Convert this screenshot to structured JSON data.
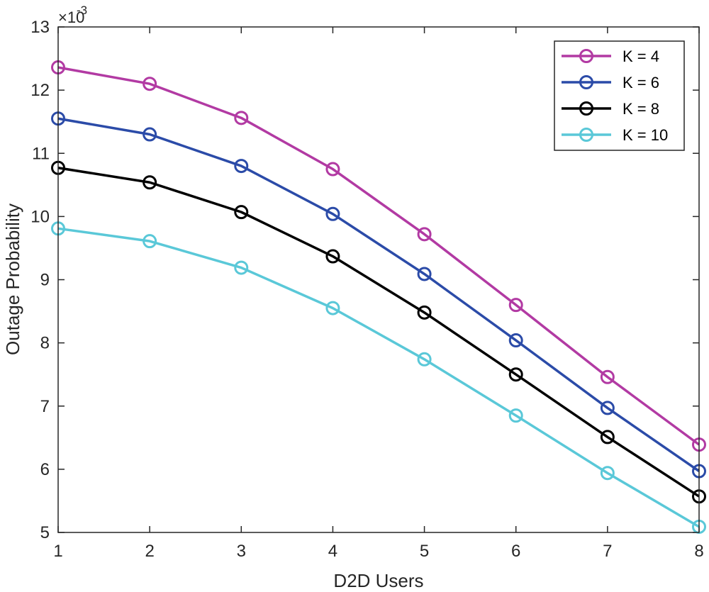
{
  "chart_data": {
    "type": "line",
    "title": "",
    "xlabel": "D2D Users",
    "ylabel": "Outage Probability",
    "x": [
      1,
      2,
      3,
      4,
      5,
      6,
      7,
      8
    ],
    "xlim": [
      1,
      8
    ],
    "ylim": [
      5,
      13
    ],
    "xticks": [
      1,
      2,
      3,
      4,
      5,
      6,
      7,
      8
    ],
    "yticks": [
      5,
      6,
      7,
      8,
      9,
      10,
      11,
      12,
      13
    ],
    "y_multiplier": "×10",
    "y_multiplier_exp": "-3",
    "grid": false,
    "legend_position": "top-right",
    "series": [
      {
        "name": "K = 4",
        "color": "#B23AA3",
        "marker": "circle",
        "values": [
          12.36,
          12.1,
          11.56,
          10.75,
          9.72,
          8.6,
          7.46,
          6.39
        ]
      },
      {
        "name": "K = 6",
        "color": "#2B4BA8",
        "marker": "circle",
        "values": [
          11.55,
          11.3,
          10.8,
          10.04,
          9.09,
          8.04,
          6.97,
          5.97
        ]
      },
      {
        "name": "K = 8",
        "color": "#000000",
        "marker": "circle",
        "values": [
          10.77,
          10.54,
          10.07,
          9.37,
          8.48,
          7.5,
          6.51,
          5.57
        ]
      },
      {
        "name": "K = 10",
        "color": "#5AC8D8",
        "marker": "circle",
        "values": [
          9.81,
          9.61,
          9.19,
          8.55,
          7.74,
          6.85,
          5.94,
          5.09
        ]
      }
    ]
  }
}
